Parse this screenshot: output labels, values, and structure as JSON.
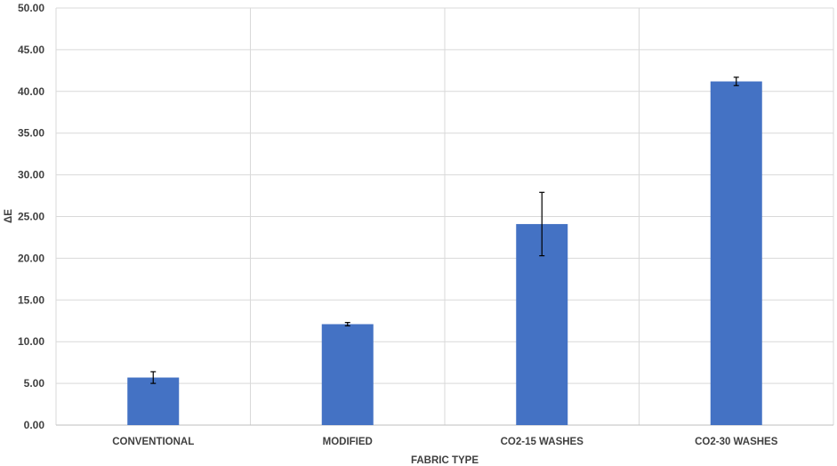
{
  "chart_data": {
    "type": "bar",
    "xlabel": "FABRIC TYPE",
    "ylabel": "ΔE",
    "ylim": [
      0,
      50
    ],
    "ytick_step": 5,
    "ytick_labels": [
      "0.00",
      "5.00",
      "10.00",
      "15.00",
      "20.00",
      "25.00",
      "30.00",
      "35.00",
      "40.00",
      "45.00",
      "50.00"
    ],
    "categories": [
      "CONVENTIONAL",
      "MODIFIED",
      "CO2-15 WASHES",
      "CO2-30 WASHES"
    ],
    "values": [
      5.7,
      12.1,
      24.1,
      41.2
    ],
    "error": [
      0.7,
      0.2,
      3.8,
      0.5
    ],
    "bar_color": "#4472C4",
    "grid": true,
    "grid_color": "#D9D9D9"
  }
}
